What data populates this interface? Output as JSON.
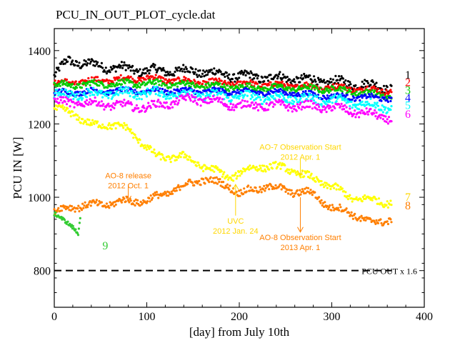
{
  "chart_data": {
    "type": "scatter",
    "title": "PCU_IN_OUT_PLOT_cycle.dat",
    "xlabel": "[day] from July 10th",
    "ylabel": "PCU IN [W]",
    "xlim": [
      0,
      400
    ],
    "ylim": [
      700,
      1460
    ],
    "xticks": [
      0,
      100,
      200,
      300,
      400
    ],
    "yticks": [
      800,
      1000,
      1200,
      1400
    ],
    "grid": false,
    "series": [
      {
        "label": "1",
        "color": "#000000",
        "x_range": [
          0,
          365
        ],
        "segments": [
          [
            0,
            1330
          ],
          [
            15,
            1375
          ],
          [
            30,
            1365
          ],
          [
            60,
            1355
          ],
          [
            100,
            1345
          ],
          [
            150,
            1345
          ],
          [
            200,
            1330
          ],
          [
            250,
            1325
          ],
          [
            300,
            1315
          ],
          [
            365,
            1300
          ]
        ],
        "jitter": 22
      },
      {
        "label": "2",
        "color": "#ff0000",
        "x_range": [
          0,
          365
        ],
        "segments": [
          [
            0,
            1310
          ],
          [
            60,
            1320
          ],
          [
            100,
            1325
          ],
          [
            150,
            1315
          ],
          [
            200,
            1310
          ],
          [
            250,
            1305
          ],
          [
            300,
            1300
          ],
          [
            365,
            1290
          ]
        ],
        "jitter": 15
      },
      {
        "label": "3",
        "color": "#00cc00",
        "x_range": [
          0,
          365
        ],
        "segments": [
          [
            0,
            1305
          ],
          [
            60,
            1310
          ],
          [
            120,
            1310
          ],
          [
            200,
            1300
          ],
          [
            300,
            1295
          ],
          [
            365,
            1275
          ]
        ],
        "jitter": 15
      },
      {
        "label": "4",
        "color": "#0000ff",
        "x_range": [
          0,
          365
        ],
        "segments": [
          [
            0,
            1285
          ],
          [
            60,
            1290
          ],
          [
            150,
            1290
          ],
          [
            250,
            1285
          ],
          [
            300,
            1275
          ],
          [
            365,
            1270
          ]
        ],
        "jitter": 13
      },
      {
        "label": "5",
        "color": "#00ffff",
        "x_range": [
          0,
          365
        ],
        "segments": [
          [
            0,
            1280
          ],
          [
            100,
            1285
          ],
          [
            200,
            1275
          ],
          [
            300,
            1265
          ],
          [
            365,
            1245
          ]
        ],
        "jitter": 22
      },
      {
        "label": "6",
        "color": "#ff00ff",
        "x_range": [
          0,
          365
        ],
        "segments": [
          [
            0,
            1260
          ],
          [
            50,
            1255
          ],
          [
            100,
            1245
          ],
          [
            150,
            1270
          ],
          [
            200,
            1250
          ],
          [
            250,
            1250
          ],
          [
            300,
            1245
          ],
          [
            365,
            1215
          ]
        ],
        "jitter": 20
      },
      {
        "label": "7",
        "color": "#ffff00",
        "x_range": [
          0,
          365
        ],
        "segments": [
          [
            0,
            1240
          ],
          [
            20,
            1230
          ],
          [
            40,
            1195
          ],
          [
            60,
            1200
          ],
          [
            80,
            1185
          ],
          [
            95,
            1150
          ],
          [
            110,
            1110
          ],
          [
            140,
            1110
          ],
          [
            170,
            1075
          ],
          [
            190,
            1055
          ],
          [
            220,
            1085
          ],
          [
            250,
            1080
          ],
          [
            280,
            1050
          ],
          [
            300,
            1030
          ],
          [
            320,
            1000
          ],
          [
            365,
            985
          ]
        ],
        "jitter": 18
      },
      {
        "label": "8",
        "color": "#ff7f00",
        "x_range": [
          0,
          365
        ],
        "segments": [
          [
            0,
            960
          ],
          [
            20,
            975
          ],
          [
            50,
            980
          ],
          [
            80,
            990
          ],
          [
            100,
            990
          ],
          [
            120,
            1010
          ],
          [
            140,
            1030
          ],
          [
            160,
            1050
          ],
          [
            190,
            1030
          ],
          [
            200,
            1010
          ],
          [
            230,
            1030
          ],
          [
            260,
            1015
          ],
          [
            280,
            1010
          ],
          [
            300,
            970
          ],
          [
            320,
            960
          ],
          [
            340,
            930
          ],
          [
            365,
            940
          ]
        ],
        "jitter": 18
      },
      {
        "label": "9",
        "color": "#33cc33",
        "x_range": [
          0,
          28
        ],
        "segments": [
          [
            0,
            955
          ],
          [
            10,
            935
          ],
          [
            20,
            920
          ],
          [
            26,
            905
          ],
          [
            28,
            950
          ]
        ],
        "jitter": 10
      }
    ],
    "reference_line": {
      "label": "PCU OUT x 1.6",
      "y": 800,
      "x_range": [
        0,
        365
      ],
      "style": "dashed",
      "color": "#000000"
    },
    "annotations": [
      {
        "lines": [
          "AO-8 release",
          "2012 Oct. 1"
        ],
        "color": "#ff7f00",
        "x": 80,
        "y": 1035,
        "text_x": 80,
        "text_y": 1052,
        "arrow_to_y": 990
      },
      {
        "lines": [
          "UVC",
          "2012 Jan. 24"
        ],
        "color": "#ffd700",
        "x": 196,
        "y": 950,
        "text_x": 196,
        "text_y": 928,
        "arrow_to_y": 1035
      },
      {
        "lines": [
          "AO-7 Observation Start",
          "2012 Apr. 1"
        ],
        "color": "#ffd700",
        "x": 266,
        "y": 1103,
        "text_x": 266,
        "text_y": 1130,
        "arrow_to_y": 1060
      },
      {
        "lines": [
          "AO-8 Observation Start",
          "2013 Apr. 1"
        ],
        "color": "#ff7f00",
        "x": 266,
        "y": 1000,
        "text_x": 266,
        "text_y": 883,
        "arrow_to_y": 905
      }
    ]
  }
}
